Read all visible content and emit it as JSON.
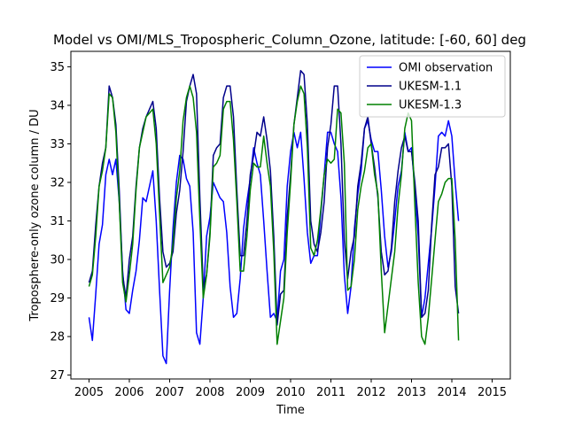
{
  "chart_data": {
    "type": "line",
    "title": "Model vs OMI/MLS_Tropospheric_Column_Ozone, latitude: [-60, 60] deg",
    "xlabel": "Time",
    "ylabel": "Troposphere-only ozone column / DU",
    "xlim": [
      2004.55,
      2015.45
    ],
    "ylim": [
      26.9,
      35.4
    ],
    "xticks": [
      2005,
      2006,
      2007,
      2008,
      2009,
      2010,
      2011,
      2012,
      2013,
      2014,
      2015
    ],
    "xtick_labels": [
      "2005",
      "2006",
      "2007",
      "2008",
      "2009",
      "2010",
      "2011",
      "2012",
      "2013",
      "2014",
      "2015"
    ],
    "yticks": [
      27,
      28,
      29,
      30,
      31,
      32,
      33,
      34,
      35
    ],
    "ytick_labels": [
      "27",
      "28",
      "29",
      "30",
      "31",
      "32",
      "33",
      "34",
      "35"
    ],
    "legend_position": "top-right",
    "grid": false,
    "x_start": 2005.0,
    "x_step": 0.08333,
    "series": [
      {
        "name": "OMI observation",
        "color": "#0000ff",
        "values": [
          28.5,
          27.9,
          29.1,
          30.4,
          30.9,
          32.2,
          32.6,
          32.2,
          32.6,
          31.5,
          29.7,
          28.7,
          28.6,
          29.2,
          29.7,
          30.5,
          31.6,
          31.5,
          31.9,
          32.3,
          31.0,
          29.2,
          27.5,
          27.3,
          29.2,
          30.8,
          32.0,
          32.7,
          32.6,
          32.1,
          31.9,
          30.7,
          28.1,
          27.8,
          29.0,
          30.6,
          31.1,
          32.0,
          31.8,
          31.6,
          31.5,
          30.7,
          29.3,
          28.5,
          28.6,
          29.5,
          30.8,
          31.5,
          32.1,
          32.9,
          32.5,
          32.2,
          31.0,
          29.7,
          28.5,
          28.6,
          28.4,
          29.7,
          30.0,
          31.9,
          32.8,
          33.3,
          32.9,
          33.3,
          32.1,
          30.7,
          29.9,
          30.1,
          30.1,
          31.2,
          32.2,
          33.3,
          33.3,
          33.0,
          32.8,
          31.6,
          29.6,
          28.6,
          29.3,
          30.8,
          31.7,
          32.3,
          33.4,
          33.6,
          33.1,
          32.8,
          32.8,
          31.8,
          30.6,
          29.8,
          30.2,
          31.0,
          31.9,
          32.3,
          33.3,
          32.8,
          32.9,
          31.8,
          30.6,
          28.5,
          29.0,
          29.9,
          30.8,
          31.9,
          33.2,
          33.3,
          33.2,
          33.6,
          33.2,
          32.0,
          31.0
        ]
      },
      {
        "name": "UKESM-1.1",
        "color": "#00008b",
        "values": [
          29.4,
          29.7,
          30.9,
          31.9,
          32.5,
          32.9,
          34.5,
          34.2,
          33.5,
          31.8,
          29.6,
          29.0,
          30.0,
          30.6,
          31.9,
          32.9,
          33.4,
          33.7,
          33.9,
          34.1,
          33.4,
          31.6,
          30.2,
          29.8,
          29.9,
          30.2,
          31.2,
          31.8,
          32.8,
          34.1,
          34.5,
          34.8,
          34.3,
          31.6,
          29.3,
          29.6,
          30.7,
          32.7,
          32.9,
          33.0,
          34.2,
          34.5,
          34.5,
          33.7,
          31.8,
          30.1,
          30.1,
          31.0,
          32.2,
          32.7,
          33.3,
          33.2,
          33.7,
          33.1,
          32.3,
          30.6,
          28.3,
          29.1,
          29.2,
          31.1,
          32.2,
          33.5,
          34.2,
          34.9,
          34.8,
          33.5,
          31.0,
          30.4,
          30.2,
          30.7,
          31.5,
          32.9,
          33.5,
          34.5,
          34.5,
          33.0,
          30.5,
          29.5,
          30.2,
          30.6,
          31.9,
          32.5,
          33.4,
          33.7,
          33.0,
          32.4,
          31.6,
          30.2,
          29.6,
          29.7,
          30.3,
          31.5,
          32.3,
          32.9,
          33.2,
          32.8,
          32.8,
          32.0,
          31.0,
          28.5,
          28.6,
          29.2,
          30.9,
          32.2,
          32.4,
          32.9,
          32.9,
          33.0,
          31.9,
          29.3,
          28.6
        ]
      },
      {
        "name": "UKESM-1.3",
        "color": "#008000",
        "values": [
          29.3,
          29.6,
          30.6,
          31.9,
          32.3,
          32.9,
          34.3,
          34.2,
          33.3,
          31.5,
          29.4,
          28.9,
          29.6,
          30.4,
          31.8,
          32.9,
          33.3,
          33.7,
          33.8,
          33.9,
          33.0,
          31.2,
          29.4,
          29.6,
          29.8,
          30.4,
          31.6,
          32.3,
          33.6,
          34.2,
          34.5,
          34.2,
          33.3,
          31.0,
          29.0,
          29.6,
          30.6,
          32.4,
          32.5,
          32.7,
          33.9,
          34.1,
          34.1,
          33.1,
          31.5,
          29.7,
          29.7,
          30.6,
          31.8,
          32.5,
          32.4,
          32.4,
          33.2,
          32.5,
          31.9,
          30.2,
          27.8,
          28.4,
          29.0,
          30.7,
          32.0,
          33.5,
          34.1,
          34.5,
          34.3,
          32.9,
          30.3,
          30.1,
          30.5,
          31.3,
          32.2,
          32.6,
          32.5,
          32.6,
          33.9,
          33.8,
          32.5,
          29.2,
          29.3,
          30.0,
          31.3,
          31.9,
          32.3,
          32.9,
          33.0,
          32.2,
          31.7,
          29.7,
          28.1,
          28.8,
          29.5,
          30.2,
          31.4,
          32.2,
          33.4,
          33.8,
          33.6,
          31.4,
          29.4,
          28.0,
          27.8,
          28.5,
          29.5,
          30.5,
          31.5,
          31.7,
          32.0,
          32.1,
          32.1,
          30.5,
          27.9
        ]
      }
    ]
  }
}
